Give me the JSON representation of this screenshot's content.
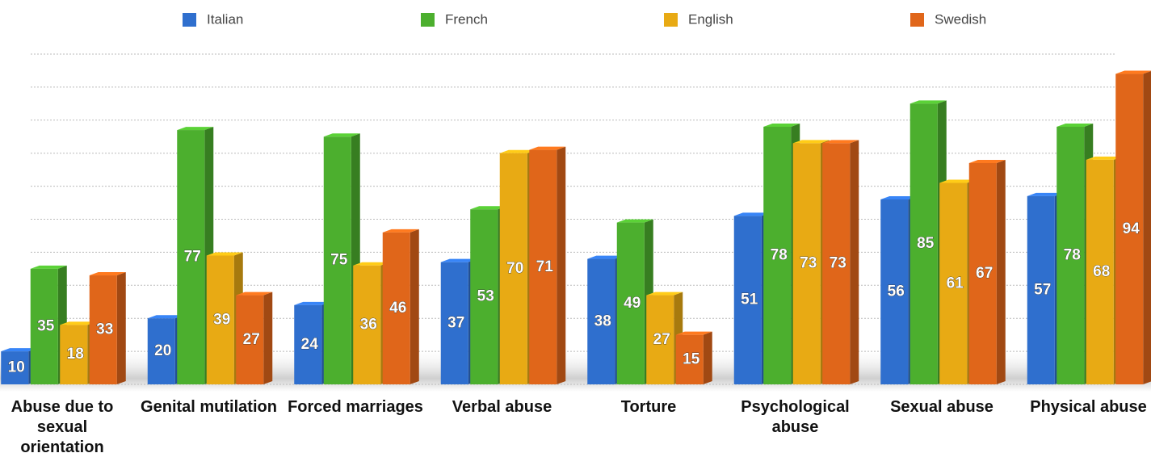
{
  "chart_data": {
    "type": "bar",
    "categories": [
      "Abuse due to sexual orientation",
      "Genital mutilation",
      "Forced marriages",
      "Verbal abuse",
      "Torture",
      "Psychological abuse",
      "Sexual abuse",
      "Physical abuse"
    ],
    "series": [
      {
        "name": "Italian",
        "color": "#2f6fce",
        "values": [
          10,
          20,
          24,
          37,
          38,
          51,
          56,
          57
        ]
      },
      {
        "name": "French",
        "color": "#4caf2e",
        "values": [
          35,
          77,
          75,
          53,
          49,
          78,
          85,
          78
        ]
      },
      {
        "name": "English",
        "color": "#e8aa14",
        "values": [
          18,
          39,
          36,
          70,
          27,
          73,
          61,
          68
        ]
      },
      {
        "name": "Swedish",
        "color": "#e0661a",
        "values": [
          33,
          27,
          46,
          71,
          15,
          73,
          67,
          94
        ]
      }
    ],
    "ylim": [
      0,
      100
    ],
    "yticks": [
      0,
      10,
      20,
      30,
      40,
      50,
      60,
      70,
      80,
      90,
      100
    ],
    "grid": true
  }
}
